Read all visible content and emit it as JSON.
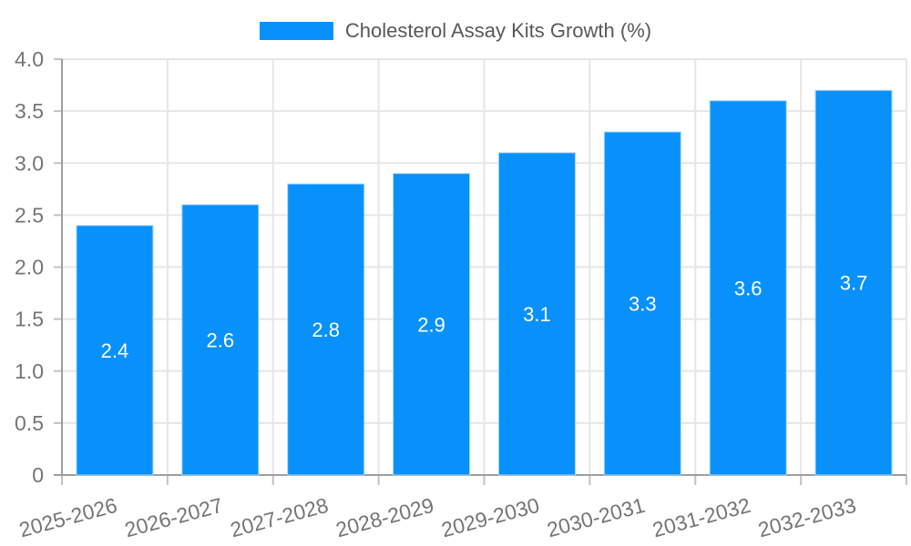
{
  "legend": {
    "label": "Cholesterol Assay Kits Growth (%)"
  },
  "chart_data": {
    "type": "bar",
    "title": "Cholesterol Assay Kits Growth (%)",
    "categories": [
      "2025-2026",
      "2026-2027",
      "2027-2028",
      "2028-2029",
      "2029-2030",
      "2030-2031",
      "2031-2032",
      "2032-2033"
    ],
    "series": [
      {
        "name": "Cholesterol Assay Kits Growth (%)",
        "values": [
          2.4,
          2.6,
          2.8,
          2.9,
          3.1,
          3.3,
          3.6,
          3.7
        ]
      }
    ],
    "value_labels": [
      "2.4",
      "2.6",
      "2.8",
      "2.9",
      "3.1",
      "3.3",
      "3.6",
      "3.7"
    ],
    "xlabel": "",
    "ylabel": "",
    "ylim": [
      0,
      4.0
    ],
    "yticks": [
      0,
      0.5,
      1.0,
      1.5,
      2.0,
      2.5,
      3.0,
      3.5,
      4.0
    ],
    "ytick_labels": [
      "0",
      "0.5",
      "1.0",
      "1.5",
      "2.0",
      "2.5",
      "3.0",
      "3.5",
      "4.0"
    ],
    "grid": true,
    "legend_position": "top",
    "x_tick_rotation_deg": -15,
    "colors": {
      "bar": "#0991fb",
      "bar_border": "#a9d6fb",
      "grid": "#e6e6e6",
      "axis": "#9e9e9e",
      "tick": "#c2c2c2",
      "tick_label": "#757575",
      "value_label": "#ffffff",
      "legend_text": "#595959",
      "background": "#ffffff"
    }
  }
}
